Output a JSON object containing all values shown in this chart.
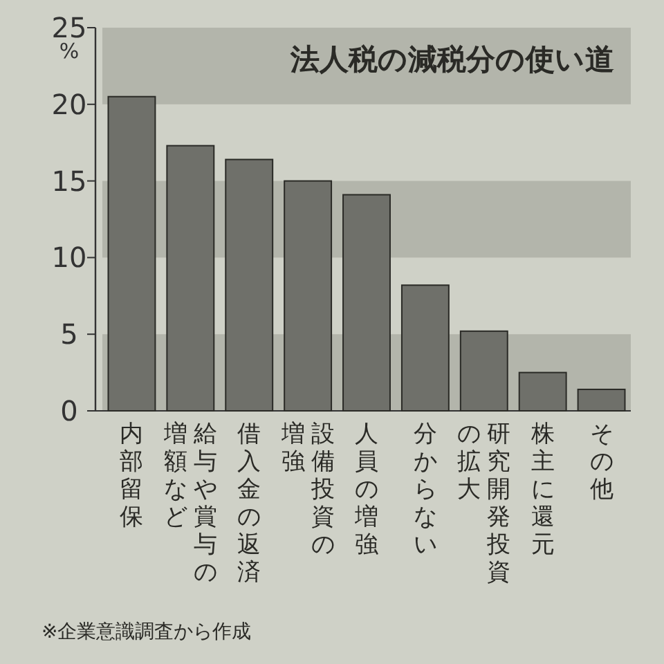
{
  "chart_data": {
    "type": "bar",
    "title": "法人税の減税分の使い道",
    "ylabel": "%",
    "categories": [
      "内部留保",
      "給与や賞与の増額など",
      "借入金の返済",
      "設備投資の増強",
      "人員の増強",
      "分からない",
      "研究開発投資の拡大",
      "株主に還元",
      "その他"
    ],
    "values": [
      20.5,
      17.3,
      16.4,
      15.0,
      14.1,
      8.2,
      5.2,
      2.5,
      1.4
    ],
    "color": "#6f706a",
    "ylim": [
      0,
      25
    ],
    "yticks": [
      0,
      5,
      10,
      15,
      20,
      25
    ],
    "bands": [
      {
        "axis": "y",
        "from": 0,
        "to": 5,
        "color": "#b3b5ab"
      },
      {
        "axis": "y",
        "from": 10,
        "to": 15,
        "color": "#b3b5ab"
      },
      {
        "axis": "y",
        "from": 20,
        "to": 25,
        "color": "#b3b5ab"
      }
    ],
    "annotations": [
      "※企業意識調査から作成"
    ]
  }
}
